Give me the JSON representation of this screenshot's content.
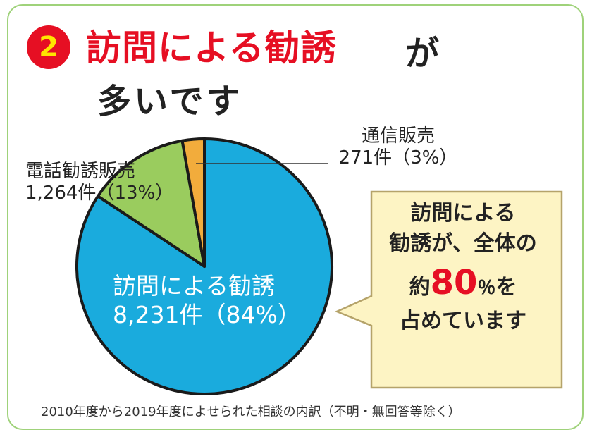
{
  "heading": {
    "number": "2",
    "title_red": "訪問による勧誘",
    "title_black": "が",
    "title_line2": "多いです"
  },
  "colors": {
    "visit": "#1aabdd",
    "phone": "#9acc5e",
    "mail": "#f2ac3c",
    "accent_red": "#e60f23",
    "callout_bg": "#fdf4c4",
    "callout_border": "#b5a36a"
  },
  "chart_data": {
    "type": "pie",
    "title": "",
    "slices": [
      {
        "label": "訪問による勧誘",
        "count": "8,231件",
        "percent_text": "（84%）",
        "value": 8231
      },
      {
        "label": "電話勧誘販売",
        "count": "1,264件",
        "percent_text": "（13%）",
        "value": 1264
      },
      {
        "label": "通信販売",
        "count": "271件",
        "percent_text": "（3%）",
        "value": 271
      }
    ]
  },
  "callout": {
    "line1": "訪問による",
    "line2": "勧誘が、全体の",
    "line3_pre": "約",
    "line3_big": "80",
    "line3_pct": "％",
    "line3_post": "を",
    "line4": "占めています"
  },
  "footnote": "2010年度から2019年度によせられた相談の内訳（不明・無回答等除く）"
}
